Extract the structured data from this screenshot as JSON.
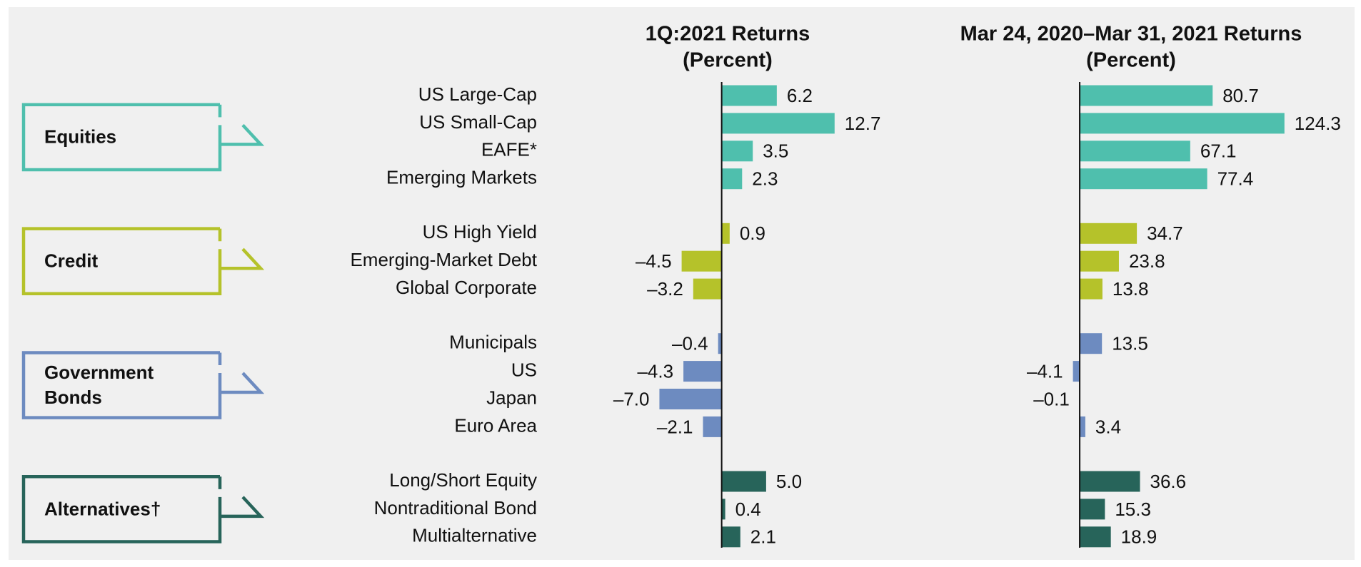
{
  "chart_data": [
    {
      "type": "bar",
      "title": "1Q:2021 Returns",
      "subtitle": "(Percent)",
      "xlim": [
        -8,
        14
      ],
      "series": [
        {
          "name": "Equities",
          "color": "#4fbfad",
          "categories": [
            "US Large-Cap",
            "US Small-Cap",
            "EAFE*",
            "Emerging Markets"
          ],
          "values": [
            6.2,
            12.7,
            3.5,
            2.3
          ],
          "value_labels": [
            "6.2",
            "12.7",
            "3.5",
            "2.3"
          ]
        },
        {
          "name": "Credit",
          "color": "#b5c22a",
          "categories": [
            "US High Yield",
            "Emerging-Market Debt",
            "Global Corporate"
          ],
          "values": [
            0.9,
            -4.5,
            -3.2
          ],
          "value_labels": [
            "0.9",
            "–4.5",
            "–3.2"
          ]
        },
        {
          "name": "Government Bonds",
          "color": "#6d8bc0",
          "categories": [
            "Municipals",
            "US",
            "Japan",
            "Euro Area"
          ],
          "values": [
            -0.4,
            -4.3,
            -7.0,
            -2.1
          ],
          "value_labels": [
            "–0.4",
            "–4.3",
            "–7.0",
            "–2.1"
          ]
        },
        {
          "name": "Alternatives†",
          "color": "#27645a",
          "categories": [
            "Long/Short Equity",
            "Nontraditional Bond",
            "Multialternative"
          ],
          "values": [
            5.0,
            0.4,
            2.1
          ],
          "value_labels": [
            "5.0",
            "0.4",
            "2.1"
          ]
        }
      ]
    },
    {
      "type": "bar",
      "title": "Mar 24, 2020–Mar 31, 2021 Returns",
      "subtitle": "(Percent)",
      "xlim": [
        -10,
        140
      ],
      "series": [
        {
          "values": [
            80.7,
            124.3,
            67.1,
            77.4
          ],
          "value_labels": [
            "80.7",
            "124.3",
            "67.1",
            "77.4"
          ]
        },
        {
          "values": [
            34.7,
            23.8,
            13.8
          ],
          "value_labels": [
            "34.7",
            "23.8",
            "13.8"
          ]
        },
        {
          "values": [
            13.5,
            -4.1,
            -0.1,
            3.4
          ],
          "value_labels": [
            "13.5",
            "–4.1",
            "–0.1",
            "3.4"
          ]
        },
        {
          "values": [
            36.6,
            15.3,
            18.9
          ],
          "value_labels": [
            "36.6",
            "15.3",
            "18.9"
          ]
        }
      ]
    }
  ]
}
